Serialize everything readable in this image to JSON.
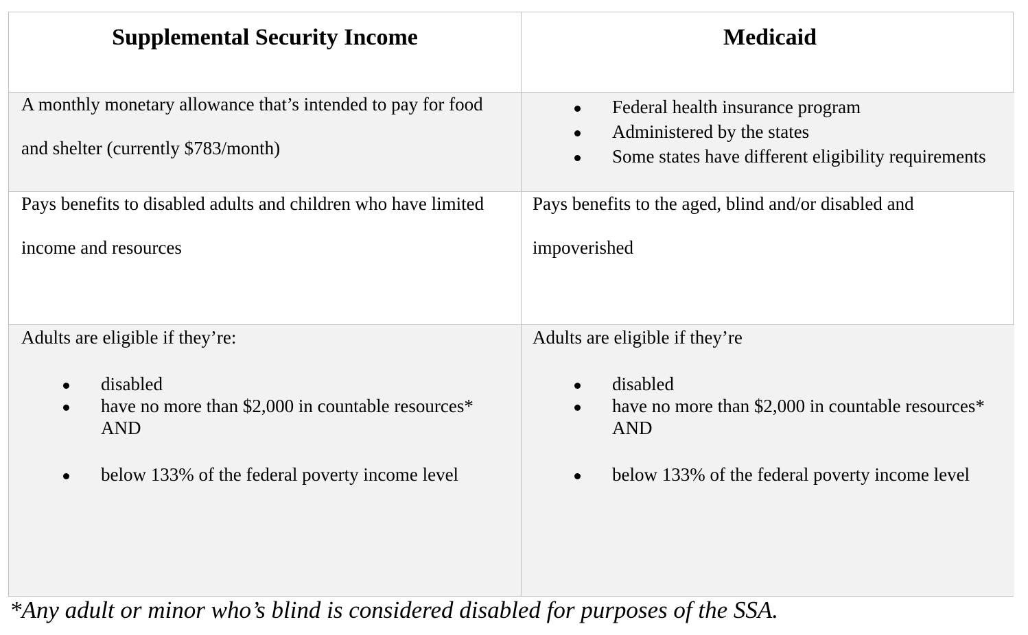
{
  "table": {
    "header": [
      "Supplemental Security Income",
      "Medicaid"
    ],
    "rows": [
      [
        {
          "text": "A monthly monetary allowance that’s intended to pay for food and shelter (currently $783/month)"
        },
        {
          "bullets": [
            {
              "text": "Federal health insurance program"
            },
            {
              "text": "Administered by the states"
            },
            {
              "text": "Some states have different eligibility requirements"
            }
          ]
        }
      ],
      [
        {
          "text": "Pays benefits to disabled adults and children who have limited income and resources"
        },
        {
          "text": "Pays benefits to the aged, blind  and/or disabled and impoverished"
        }
      ],
      [
        {
          "intro": "Adults are eligible if they’re:",
          "bullets": [
            {
              "text": "disabled"
            },
            {
              "text": "have no more than $2,000 in countable resources*",
              "after": "AND"
            },
            {
              "text": "below 133% of the federal poverty income level"
            }
          ]
        },
        {
          "intro": "Adults are eligible if they’re",
          "bullets": [
            {
              "text": "disabled"
            },
            {
              "text": "have no more than $2,000 in countable resources*",
              "after": "AND"
            },
            {
              "text": "below 133% of the federal poverty income level"
            }
          ]
        }
      ]
    ]
  },
  "footnote": "*Any adult or minor who’s blind is considered disabled for purposes of the SSA."
}
